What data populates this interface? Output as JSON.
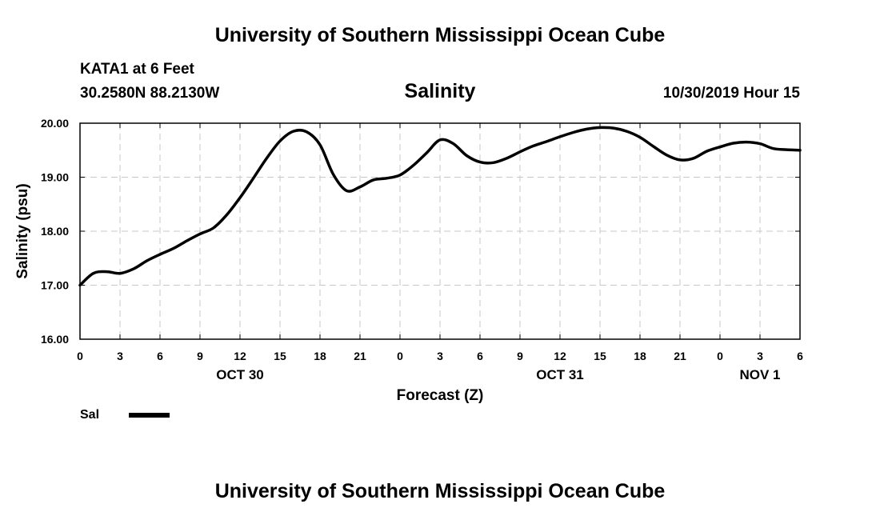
{
  "header": {
    "title_top": "University of Southern Mississippi Ocean Cube",
    "station": "KATA1 at 6 Feet",
    "coords": "30.2580N 88.2130W",
    "chart_title": "Salinity",
    "run_time": "10/30/2019 Hour 15",
    "title_bottom": "University of Southern Mississippi Ocean Cube"
  },
  "legend": {
    "label": "Sal",
    "color": "#000000"
  },
  "chart_data": {
    "type": "line",
    "title": "Salinity",
    "xlabel": "Forecast (Z)",
    "ylabel": "Salinity (psu)",
    "xlim": [
      0,
      54
    ],
    "ylim": [
      16.0,
      20.0
    ],
    "yticks": [
      16.0,
      17.0,
      18.0,
      19.0,
      20.0
    ],
    "ytick_labels": [
      "16.00",
      "17.00",
      "18.00",
      "19.00",
      "20.00"
    ],
    "xticks": [
      0,
      3,
      6,
      9,
      12,
      15,
      18,
      21,
      24,
      27,
      30,
      33,
      36,
      39,
      42,
      45,
      48,
      51,
      54
    ],
    "xtick_labels": [
      "0",
      "3",
      "6",
      "9",
      "12",
      "15",
      "18",
      "21",
      "0",
      "3",
      "6",
      "9",
      "12",
      "15",
      "18",
      "21",
      "0",
      "3",
      "6"
    ],
    "date_labels": [
      {
        "x": 12,
        "label": "OCT 30"
      },
      {
        "x": 36,
        "label": "OCT 31"
      },
      {
        "x": 51,
        "label": "NOV 1"
      }
    ],
    "grid": true,
    "series": [
      {
        "name": "Sal",
        "x": [
          0,
          1,
          2,
          3,
          4,
          5,
          6,
          7,
          8,
          9,
          10,
          11,
          12,
          13,
          14,
          15,
          16,
          17,
          18,
          19,
          20,
          21,
          22,
          23,
          24,
          25,
          26,
          27,
          28,
          29,
          30,
          31,
          32,
          33,
          34,
          35,
          36,
          37,
          38,
          39,
          40,
          41,
          42,
          43,
          44,
          45,
          46,
          47,
          48,
          49,
          50,
          51,
          52,
          53,
          54
        ],
        "y": [
          17.0,
          17.22,
          17.25,
          17.22,
          17.3,
          17.45,
          17.57,
          17.68,
          17.82,
          17.95,
          18.06,
          18.3,
          18.62,
          18.98,
          19.35,
          19.67,
          19.85,
          19.84,
          19.6,
          19.05,
          18.75,
          18.82,
          18.95,
          18.98,
          19.04,
          19.22,
          19.45,
          19.69,
          19.62,
          19.4,
          19.28,
          19.27,
          19.35,
          19.47,
          19.58,
          19.66,
          19.75,
          19.83,
          19.89,
          19.92,
          19.91,
          19.85,
          19.74,
          19.57,
          19.41,
          19.32,
          19.35,
          19.48,
          19.56,
          19.63,
          19.65,
          19.62,
          19.53,
          19.51,
          19.5
        ]
      }
    ]
  }
}
